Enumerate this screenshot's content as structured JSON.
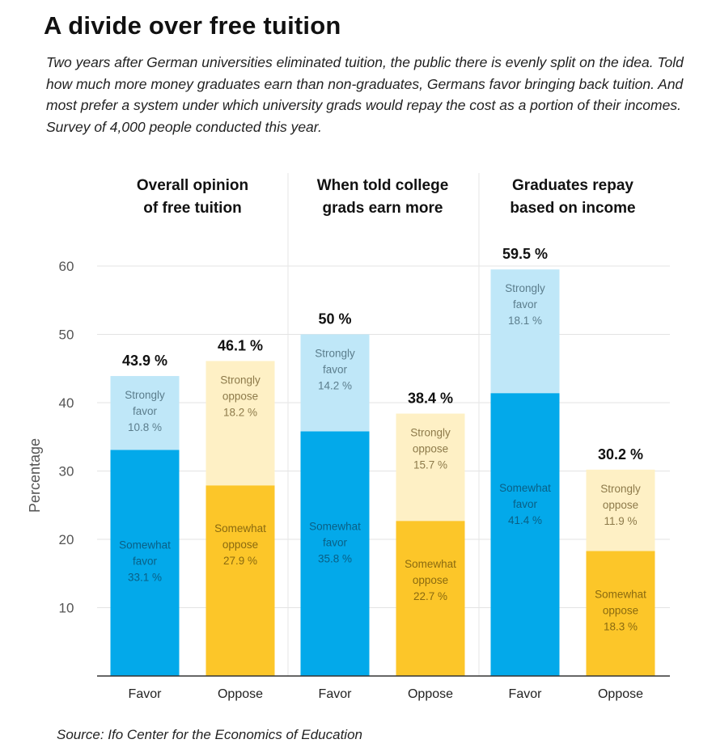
{
  "title": "A divide over free tuition",
  "subtitle": "Two years after German universities eliminated tuition, the public there is evenly split on the idea. Told how much more money graduates earn than non-graduates, Germans favor bringing back tuition. And most prefer a system under which university grads would repay the cost as a portion of their incomes. Survey of 4,000 people conducted this year.",
  "source": "Source: Ifo Center for the Economics of Education",
  "colors": {
    "favor_somewhat": "#03a9ea",
    "favor_strongly": "#bfe7f8",
    "oppose_somewhat": "#fcc629",
    "oppose_strongly": "#fef0c5",
    "favor_text": "#0a5f85",
    "favor_text_light": "#5b7d8c",
    "oppose_text": "#8a6a10",
    "oppose_text_light": "#8d7a4a"
  },
  "chart_data": {
    "type": "bar",
    "stacked": true,
    "ylabel": "Percentage",
    "ylim": [
      0,
      60
    ],
    "yticks": [
      10,
      20,
      30,
      40,
      50,
      60
    ],
    "grid": true,
    "panels": [
      {
        "title_lines": [
          "Overall opinion",
          "of free tuition"
        ],
        "bars": [
          {
            "category": "Favor",
            "total_label": "43.9 %",
            "total": 43.9,
            "segments": [
              {
                "name": "Somewhat favor",
                "label_lines": [
                  "Somewhat",
                  "favor",
                  "33.1 %"
                ],
                "value": 33.1
              },
              {
                "name": "Strongly favor",
                "label_lines": [
                  "Strongly",
                  "favor",
                  "10.8 %"
                ],
                "value": 10.8
              }
            ]
          },
          {
            "category": "Oppose",
            "total_label": "46.1 %",
            "total": 46.1,
            "segments": [
              {
                "name": "Somewhat oppose",
                "label_lines": [
                  "Somewhat",
                  "oppose",
                  "27.9 %"
                ],
                "value": 27.9
              },
              {
                "name": "Strongly oppose",
                "label_lines": [
                  "Strongly",
                  "oppose",
                  "18.2 %"
                ],
                "value": 18.2
              }
            ]
          }
        ]
      },
      {
        "title_lines": [
          "When told college",
          "grads earn more"
        ],
        "bars": [
          {
            "category": "Favor",
            "total_label": "50 %",
            "total": 50,
            "segments": [
              {
                "name": "Somewhat favor",
                "label_lines": [
                  "Somewhat",
                  "favor",
                  "35.8 %"
                ],
                "value": 35.8
              },
              {
                "name": "Strongly favor",
                "label_lines": [
                  "Strongly",
                  "favor",
                  "14.2 %"
                ],
                "value": 14.2
              }
            ]
          },
          {
            "category": "Oppose",
            "total_label": "38.4 %",
            "total": 38.4,
            "segments": [
              {
                "name": "Somewhat oppose",
                "label_lines": [
                  "Somewhat",
                  "oppose",
                  "22.7 %"
                ],
                "value": 22.7
              },
              {
                "name": "Strongly oppose",
                "label_lines": [
                  "Strongly",
                  "oppose",
                  "15.7 %"
                ],
                "value": 15.7
              }
            ]
          }
        ]
      },
      {
        "title_lines": [
          "Graduates repay",
          "based on income"
        ],
        "bars": [
          {
            "category": "Favor",
            "total_label": "59.5 %",
            "total": 59.5,
            "segments": [
              {
                "name": "Somewhat favor",
                "label_lines": [
                  "Somewhat",
                  "favor",
                  "41.4 %"
                ],
                "value": 41.4
              },
              {
                "name": "Strongly favor",
                "label_lines": [
                  "Strongly",
                  "favor",
                  "18.1 %"
                ],
                "value": 18.1
              }
            ]
          },
          {
            "category": "Oppose",
            "total_label": "30.2 %",
            "total": 30.2,
            "segments": [
              {
                "name": "Somewhat oppose",
                "label_lines": [
                  "Somewhat",
                  "oppose",
                  "18.3 %"
                ],
                "value": 18.3
              },
              {
                "name": "Strongly oppose",
                "label_lines": [
                  "Strongly",
                  "oppose",
                  "11.9 %"
                ],
                "value": 11.9
              }
            ]
          }
        ]
      }
    ]
  }
}
